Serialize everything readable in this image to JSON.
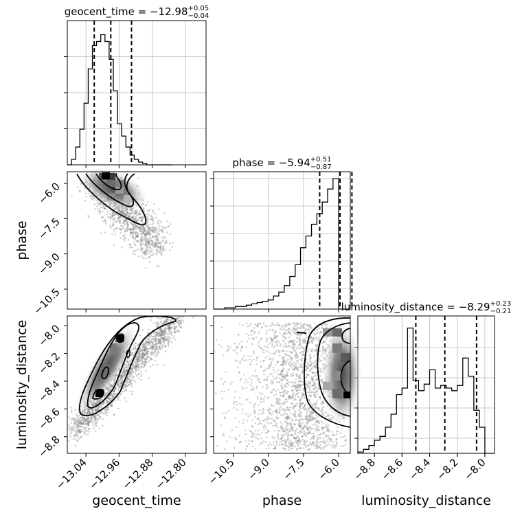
{
  "chart_data": {
    "type": "corner",
    "parameters": [
      "geocent_time",
      "phase",
      "luminosity_distance"
    ],
    "panels": [
      {
        "type": "histogram",
        "parameter": "geocent_time",
        "title": {
          "prefix": "geocent_time = ",
          "value": "−12.98",
          "plus": "+0.05",
          "minus": "−0.04"
        },
        "xlim": [
          -13.085,
          -12.75
        ],
        "bin_edges": [
          -13.085,
          -13.0749,
          -13.0648,
          -13.0547,
          -13.0446,
          -13.0345,
          -13.0244,
          -13.0143,
          -13.0042,
          -12.9941,
          -12.984,
          -12.9739,
          -12.9638,
          -12.9537,
          -12.9436,
          -12.9335,
          -12.9234,
          -12.9133,
          -12.9032,
          -12.8931,
          -12.883,
          -12.8729,
          -12.8628,
          -12.8527,
          -12.8426,
          -12.8325
        ],
        "counts": [
          0,
          0.04,
          0.13,
          0.26,
          0.45,
          0.7,
          0.87,
          0.9,
          0.95,
          0.9,
          0.77,
          0.54,
          0.3,
          0.21,
          0.13,
          0.07,
          0.04,
          0.02,
          0.01,
          0,
          0,
          0,
          0,
          0,
          0
        ],
        "quantiles": [
          -13.02,
          -12.98,
          -12.93
        ],
        "grid": true
      },
      {
        "type": "histogram",
        "parameter": "phase",
        "title": {
          "prefix": "phase = ",
          "value": "−5.94",
          "plus": "+0.51",
          "minus": "−0.87"
        },
        "xlim": [
          -11.35,
          -5.5
        ],
        "bin_edges": [
          -11.35,
          -11.12,
          -10.88,
          -10.65,
          -10.42,
          -10.19,
          -9.95,
          -9.72,
          -9.49,
          -9.26,
          -9.02,
          -8.79,
          -8.56,
          -8.33,
          -8.09,
          -7.86,
          -7.63,
          -7.4,
          -7.16,
          -6.93,
          -6.7,
          -6.47,
          -6.24,
          -6.0,
          -5.77,
          -5.54
        ],
        "counts": [
          0,
          0,
          0.01,
          0.01,
          0.02,
          0.02,
          0.03,
          0.04,
          0.05,
          0.06,
          0.07,
          0.1,
          0.13,
          0.18,
          0.25,
          0.34,
          0.47,
          0.56,
          0.65,
          0.73,
          0.82,
          0.92,
          1.0,
          0,
          0,
          0
        ],
        "quantiles": [
          -6.81,
          -5.94,
          -5.43
        ],
        "grid": true
      },
      {
        "type": "histogram",
        "parameter": "luminosity_distance",
        "title": {
          "prefix": "luminosity_distance = ",
          "value": "−8.29",
          "plus": "+0.23",
          "minus": "−0.21"
        },
        "xlim": [
          -8.92,
          -7.93
        ],
        "bin_edges": [
          -8.92,
          -8.88,
          -8.84,
          -8.8,
          -8.76,
          -8.72,
          -8.68,
          -8.64,
          -8.6,
          -8.56,
          -8.52,
          -8.48,
          -8.44,
          -8.4,
          -8.36,
          -8.32,
          -8.28,
          -8.24,
          -8.2,
          -8.16,
          -8.12,
          -8.08,
          -8.04,
          -8.0,
          -7.96,
          -7.93
        ],
        "counts": [
          0.01,
          0.03,
          0.06,
          0.1,
          0.13,
          0.2,
          0.3,
          0.45,
          0.5,
          0.96,
          0.56,
          0.48,
          0.53,
          0.64,
          0.5,
          0.52,
          0.5,
          0.48,
          0.52,
          0.73,
          0.59,
          0.33,
          0.2,
          0,
          0,
          0
        ],
        "quantiles": [
          -8.5,
          -8.29,
          -8.06
        ],
        "grid": true
      },
      {
        "type": "2d_density",
        "x": "geocent_time",
        "y": "phase",
        "xlim": [
          -13.085,
          -12.75
        ],
        "ylim": [
          -11.35,
          -5.5
        ],
        "note": "dense cluster near (-12.99, -5.9) trailing to (-12.93, -7.6)"
      },
      {
        "type": "2d_density",
        "x": "geocent_time",
        "y": "luminosity_distance",
        "xlim": [
          -13.085,
          -12.75
        ],
        "ylim": [
          -8.92,
          -7.93
        ],
        "note": "positively correlated ridge from (-13.05, -8.75) to (-12.92, -7.98)"
      },
      {
        "type": "2d_density",
        "x": "phase",
        "y": "luminosity_distance",
        "xlim": [
          -11.35,
          -5.5
        ],
        "ylim": [
          -8.92,
          -7.93
        ],
        "note": "mass concentrated at phase near -5.6, spread across distance"
      }
    ],
    "axes": {
      "geocent_time": {
        "label": "geocent_time",
        "ticks": [
          -13.04,
          -12.96,
          -12.88,
          -12.8
        ],
        "tick_labels": [
          "−13.04",
          "−12.96",
          "−12.88",
          "−12.80"
        ]
      },
      "phase": {
        "label": "phase",
        "ticks": [
          -10.5,
          -9.0,
          -7.5,
          -6.0
        ],
        "tick_labels": [
          "−10.5",
          "−9.0",
          "−7.5",
          "−6.0"
        ]
      },
      "luminosity_distance": {
        "label": "luminosity_distance",
        "ticks": [
          -8.8,
          -8.6,
          -8.4,
          -8.2,
          -8.0
        ],
        "tick_labels": [
          "−8.8",
          "−8.6",
          "−8.4",
          "−8.2",
          "−8.0"
        ]
      }
    }
  }
}
